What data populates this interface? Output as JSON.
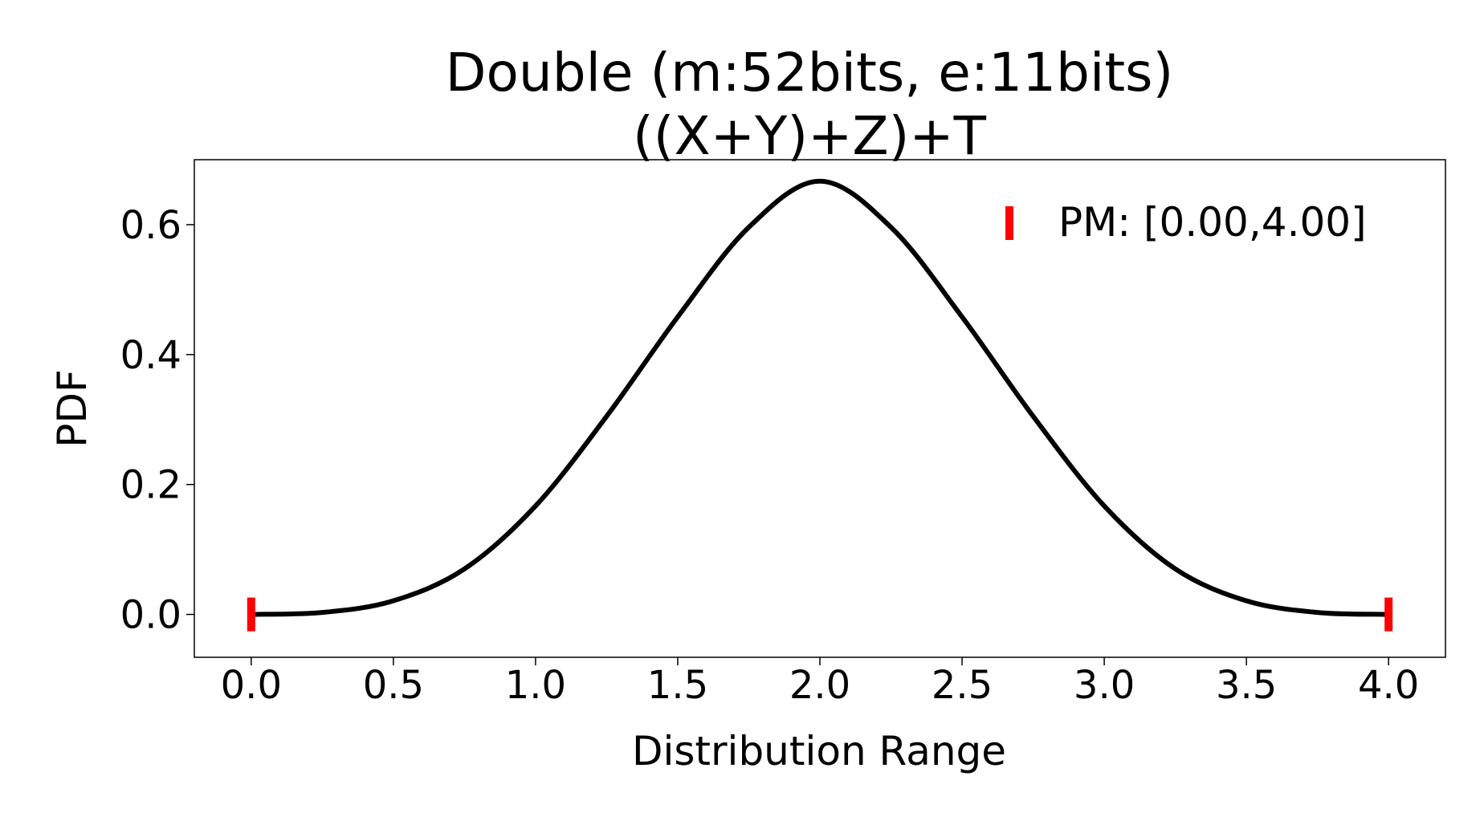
{
  "chart_data": {
    "type": "line",
    "title": "Double (m:52bits, e:11bits)",
    "subtitle": "((X+Y)+Z)+T",
    "xlabel": "Distribution Range",
    "ylabel": "PDF",
    "xlim": [
      -0.2,
      4.2
    ],
    "ylim": [
      -0.066,
      0.7
    ],
    "x_ticks": [
      0.0,
      0.5,
      1.0,
      1.5,
      2.0,
      2.5,
      3.0,
      3.5,
      4.0
    ],
    "x_tick_labels": [
      "0.0",
      "0.5",
      "1.0",
      "1.5",
      "2.0",
      "2.5",
      "3.0",
      "3.5",
      "4.0"
    ],
    "y_ticks": [
      0.0,
      0.2,
      0.4,
      0.6
    ],
    "y_tick_labels": [
      "0.0",
      "0.2",
      "0.4",
      "0.6"
    ],
    "grid": false,
    "legend_position": "top-right",
    "series": [
      {
        "kind": "curve",
        "color": "#000000",
        "x": [
          0.0,
          0.25,
          0.5,
          0.75,
          1.0,
          1.25,
          1.5,
          1.75,
          2.0,
          2.25,
          2.5,
          2.75,
          3.0,
          3.25,
          3.5,
          3.75,
          4.0
        ],
        "values": [
          0.0,
          0.003,
          0.021,
          0.07,
          0.167,
          0.305,
          0.458,
          0.596,
          0.667,
          0.596,
          0.458,
          0.305,
          0.167,
          0.07,
          0.021,
          0.003,
          0.0
        ]
      },
      {
        "name": "PM: [0.00,4.00]",
        "kind": "range-markers",
        "color": "#ff0000",
        "x": [
          0.0,
          4.0
        ],
        "values": [
          0.0,
          0.0
        ]
      }
    ]
  }
}
